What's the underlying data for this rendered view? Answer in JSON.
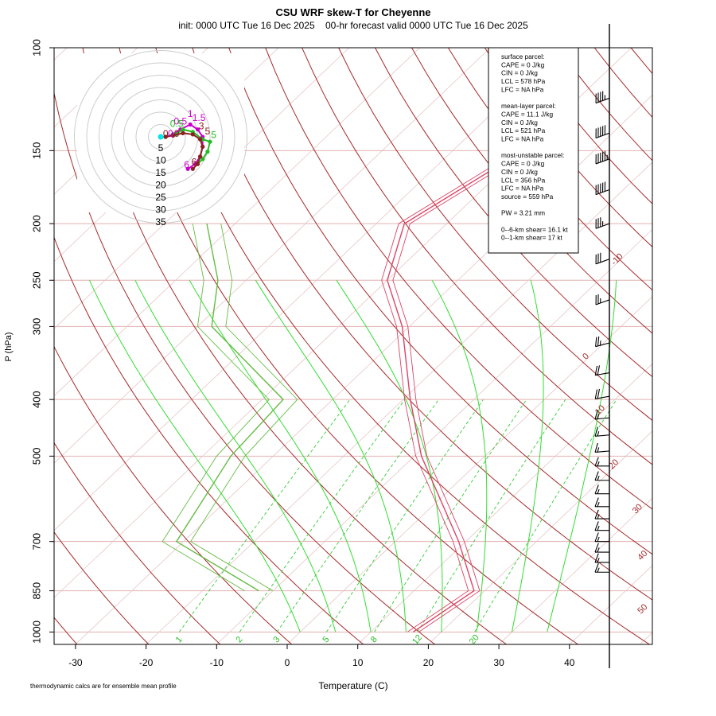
{
  "title": "CSU WRF skew-T for Cheyenne",
  "subtitle": "init: 0000 UTC Tue 16 Dec 2025    00-hr forecast valid 0000 UTC Tue 16 Dec 2025",
  "footnote": "thermodynamic calcs are for ensemble mean profile",
  "chart_data": {
    "type": "skew-t",
    "xlabel": "Temperature (C)",
    "ylabel": "P (hPa)",
    "xlim": [
      -33,
      52
    ],
    "ylim": [
      1050,
      100
    ],
    "x_ticks": [
      "-30",
      "-20",
      "-10",
      "0",
      "10",
      "20",
      "30",
      "40"
    ],
    "pressure_ticks": [
      "100",
      "150",
      "200",
      "250",
      "300",
      "400",
      "500",
      "700",
      "850",
      "1000"
    ],
    "isotherm_labels": [
      "-10",
      "0",
      "10",
      "20",
      "30",
      "40",
      "50"
    ],
    "mixing_ratio_labels": [
      "1",
      "2",
      "3",
      "5",
      "8",
      "12",
      "20"
    ],
    "temperature_profile": [
      {
        "p": 1000,
        "t": 16.0
      },
      {
        "p": 850,
        "t": 18.5
      },
      {
        "p": 700,
        "t": 9.0
      },
      {
        "p": 500,
        "t": -9.0
      },
      {
        "p": 400,
        "t": -19.0
      },
      {
        "p": 300,
        "t": -31.0
      },
      {
        "p": 250,
        "t": -40.0
      },
      {
        "p": 200,
        "t": -46.0
      },
      {
        "p": 150,
        "t": -40.0
      },
      {
        "p": 120,
        "t": -45.0
      },
      {
        "p": 110,
        "t": -52.0
      }
    ],
    "dewpoint_profile": [
      {
        "p": 850,
        "t": -12.0
      },
      {
        "p": 700,
        "t": -31.0
      },
      {
        "p": 500,
        "t": -36.0
      },
      {
        "p": 400,
        "t": -37.0
      },
      {
        "p": 300,
        "t": -58.0
      },
      {
        "p": 250,
        "t": -64.0
      },
      {
        "p": 200,
        "t": -74.0
      }
    ],
    "parcel_info": [
      "surface parcel:",
      "CAPE = 0 J/kg",
      "CIN = 0 J/kg",
      "LCL = 578 hPa",
      "LFC = NA hPa",
      "",
      "mean-layer parcel:",
      "CAPE = 11.1 J/kg",
      "CIN = 0 J/kg",
      "LCL = 521 hPa",
      "LFC = NA hPa",
      "",
      "most-unstable parcel:",
      "CAPE = 0 J/kg",
      "CIN = 0 J/kg",
      "LCL = 356 hPa",
      "LFC = NA hPa",
      "source = 559 hPa",
      "",
      "PW =  3.21 mm",
      "",
      "0--6-km shear= 16.1 kt",
      "0--1-km shear= 17 kt"
    ],
    "hodograph": {
      "ring_labels": [
        "5",
        "10",
        "15",
        "20",
        "25",
        "30",
        "35"
      ],
      "height_labels": [
        {
          "text": "0.5",
          "u": 8.0,
          "v": 5.0,
          "color": "#cc00cc"
        },
        {
          "text": "1",
          "u": 12.0,
          "v": 8.0,
          "color": "#cc00cc"
        },
        {
          "text": "1.5",
          "u": 15.5,
          "v": 6.5,
          "color": "#cc00cc"
        },
        {
          "text": "3",
          "u": 16.5,
          "v": 3.0,
          "color": "#8b2020"
        },
        {
          "text": "5",
          "u": 19.0,
          "v": 1.0,
          "color": "#8b2020"
        },
        {
          "text": "5",
          "u": 21.5,
          "v": -0.5,
          "color": "#22bb22"
        },
        {
          "text": "0.5",
          "u": 6.5,
          "v": 4.0,
          "color": "#22bb22"
        },
        {
          "text": "0",
          "u": 2.0,
          "v": 0.0,
          "color": "#8b2020"
        },
        {
          "text": "0",
          "u": 4.0,
          "v": 0.0,
          "color": "#cc00cc"
        },
        {
          "text": "0",
          "u": 6.5,
          "v": 0.0,
          "color": "#8b2020"
        },
        {
          "text": "6",
          "u": 10.5,
          "v": -12.5,
          "color": "#cc00cc"
        },
        {
          "text": "6",
          "u": 13.5,
          "v": -11.5,
          "color": "#8b2020"
        }
      ],
      "traces": [
        {
          "color": "#cc00cc",
          "points": [
            [
              2,
              0
            ],
            [
              5,
              1
            ],
            [
              8,
              3
            ],
            [
              12,
              5
            ],
            [
              15,
              3
            ],
            [
              17,
              0
            ],
            [
              17,
              -4
            ],
            [
              16,
              -8
            ],
            [
              14,
              -11
            ],
            [
              11,
              -13
            ]
          ]
        },
        {
          "color": "#22bb22",
          "points": [
            [
              2,
              0
            ],
            [
              6,
              1
            ],
            [
              9,
              3
            ],
            [
              13,
              2
            ],
            [
              17,
              -1
            ],
            [
              20,
              -2
            ],
            [
              19,
              -6
            ],
            [
              17,
              -9
            ],
            [
              15,
              -11
            ]
          ]
        },
        {
          "color": "#8b2020",
          "points": [
            [
              2,
              0
            ],
            [
              5,
              0.5
            ],
            [
              9,
              1.5
            ],
            [
              13,
              1
            ],
            [
              16,
              -1
            ],
            [
              17,
              -4
            ],
            [
              16,
              -8
            ],
            [
              15,
              -11
            ],
            [
              13,
              -13
            ]
          ]
        }
      ],
      "origin_marker": {
        "u": 0,
        "v": 0,
        "color": "#00e5ee"
      }
    },
    "wind_barbs": [
      {
        "p": 122,
        "speed": 45,
        "dir": 250
      },
      {
        "p": 140,
        "speed": 50,
        "dir": 250
      },
      {
        "p": 155,
        "speed": 55,
        "dir": 250
      },
      {
        "p": 175,
        "speed": 50,
        "dir": 250
      },
      {
        "p": 200,
        "speed": 35,
        "dir": 250
      },
      {
        "p": 230,
        "speed": 30,
        "dir": 250
      },
      {
        "p": 270,
        "speed": 25,
        "dir": 250
      },
      {
        "p": 320,
        "speed": 25,
        "dir": 255
      },
      {
        "p": 360,
        "speed": 20,
        "dir": 260
      },
      {
        "p": 395,
        "speed": 20,
        "dir": 260
      },
      {
        "p": 430,
        "speed": 15,
        "dir": 265
      },
      {
        "p": 460,
        "speed": 15,
        "dir": 265
      },
      {
        "p": 490,
        "speed": 15,
        "dir": 265
      },
      {
        "p": 520,
        "speed": 15,
        "dir": 270
      },
      {
        "p": 550,
        "speed": 15,
        "dir": 270
      },
      {
        "p": 580,
        "speed": 15,
        "dir": 270
      },
      {
        "p": 610,
        "speed": 15,
        "dir": 270
      },
      {
        "p": 640,
        "speed": 15,
        "dir": 270
      },
      {
        "p": 670,
        "speed": 15,
        "dir": 270
      },
      {
        "p": 700,
        "speed": 15,
        "dir": 270
      },
      {
        "p": 730,
        "speed": 15,
        "dir": 270
      },
      {
        "p": 760,
        "speed": 15,
        "dir": 270
      },
      {
        "p": 790,
        "speed": 15,
        "dir": 270
      }
    ]
  }
}
